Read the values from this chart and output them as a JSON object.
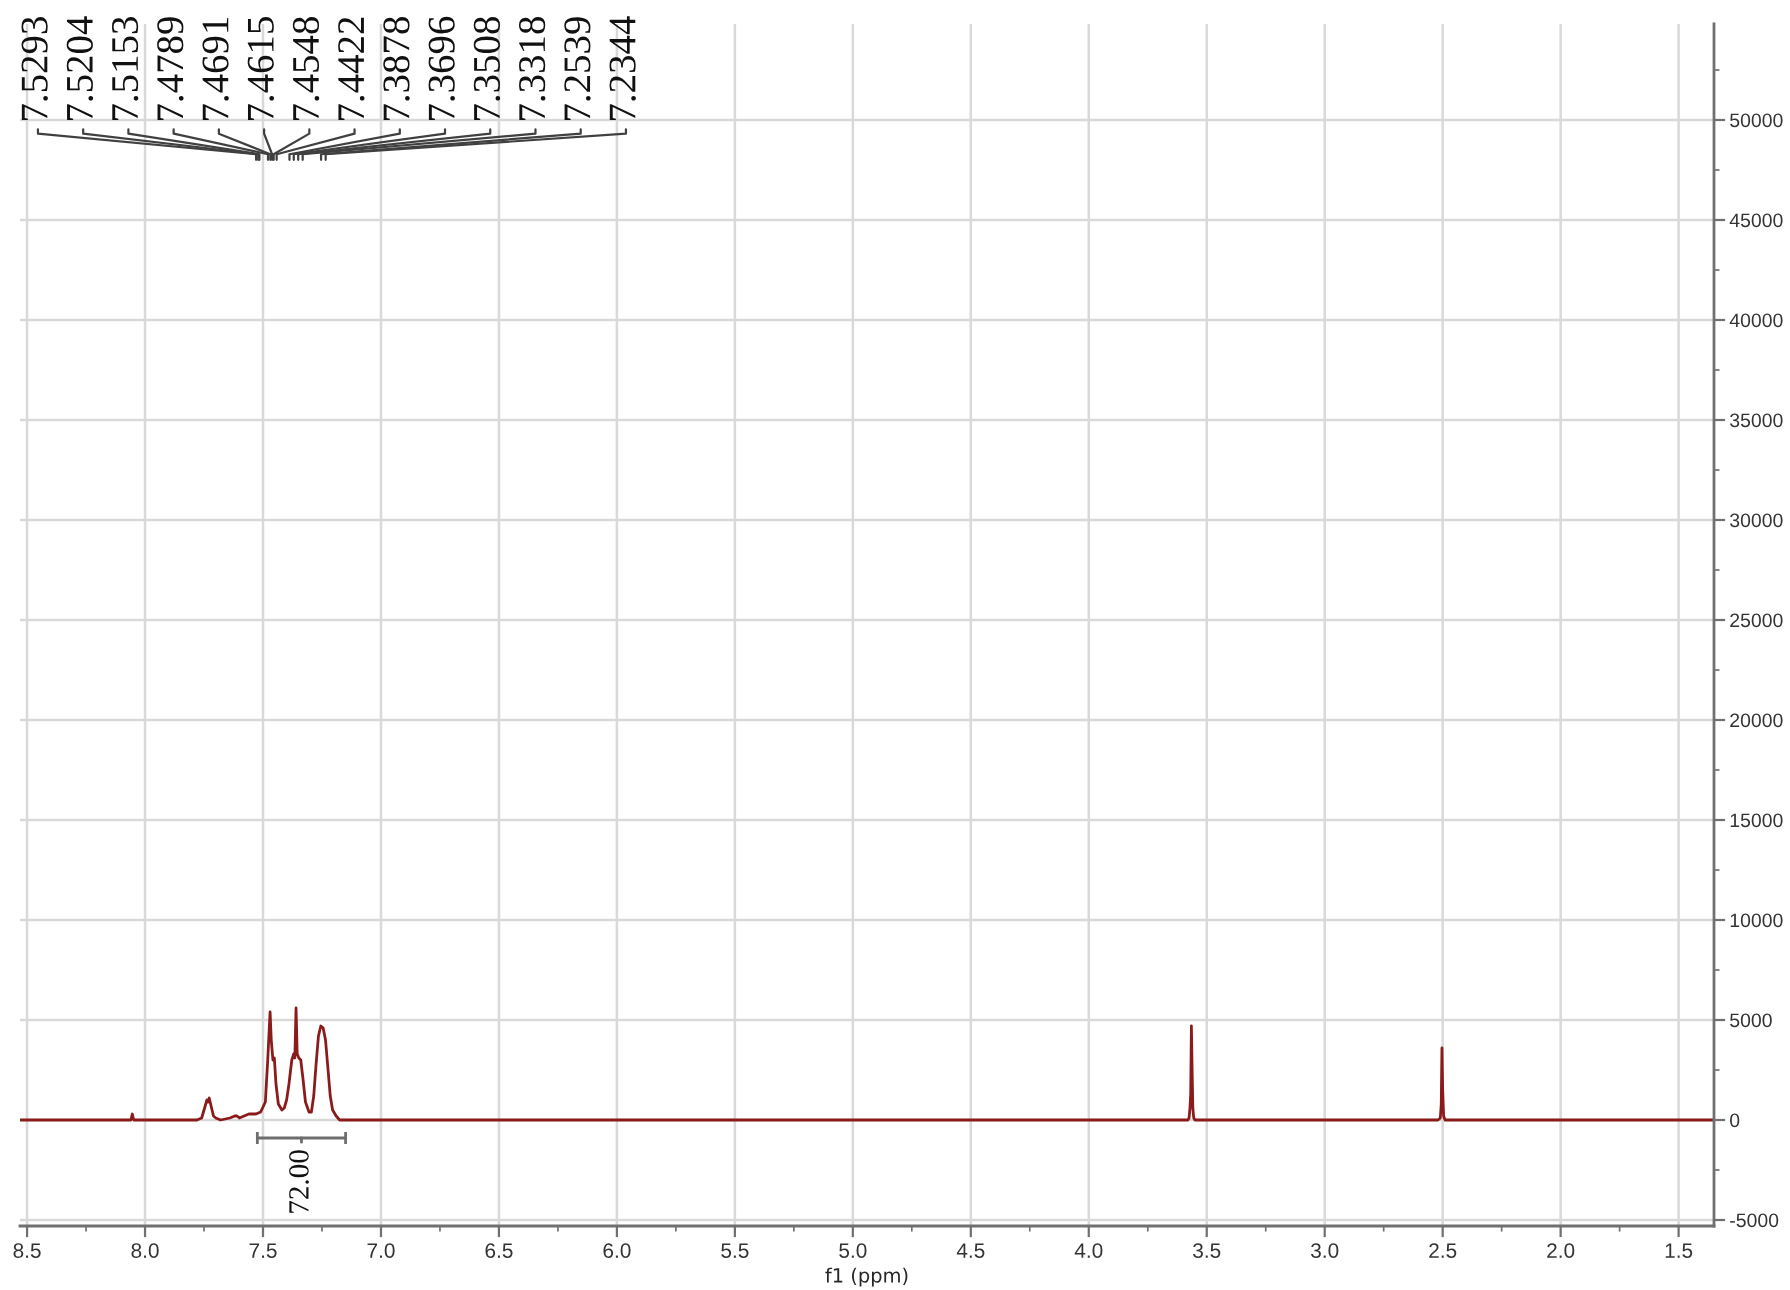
{
  "chart_data": {
    "type": "line",
    "xlabel": "f1 (ppm)",
    "series": [
      {
        "color": "#8b1a1a",
        "x": [
          8.53,
          8.3,
          8.07,
          8.06,
          8.054,
          8.048,
          8.04,
          7.9,
          7.78,
          7.76,
          7.745,
          7.738,
          7.733,
          7.728,
          7.72,
          7.71,
          7.7,
          7.68,
          7.64,
          7.62,
          7.61,
          7.6,
          7.58,
          7.56,
          7.53,
          7.51,
          7.49,
          7.48,
          7.47,
          7.465,
          7.458,
          7.452,
          7.445,
          7.435,
          7.42,
          7.41,
          7.4,
          7.39,
          7.378,
          7.37,
          7.365,
          7.36,
          7.355,
          7.348,
          7.34,
          7.33,
          7.32,
          7.305,
          7.295,
          7.285,
          7.275,
          7.265,
          7.255,
          7.245,
          7.235,
          7.225,
          7.215,
          7.205,
          7.19,
          7.175,
          7.16,
          6.5,
          5.0,
          4.0,
          3.6,
          3.58,
          3.575,
          3.571,
          3.568,
          3.565,
          3.562,
          3.559,
          3.555,
          3.55,
          3.0,
          2.52,
          2.51,
          2.506,
          2.503,
          2.5,
          2.496,
          2.49,
          2.0,
          1.35
        ],
        "values": [
          0,
          0,
          0,
          0,
          300,
          0,
          0,
          0,
          0,
          100,
          700,
          1000,
          900,
          1100,
          700,
          200,
          100,
          0,
          100,
          200,
          200,
          100,
          200,
          300,
          300,
          400,
          900,
          3000,
          5400,
          4000,
          3000,
          3100,
          1800,
          800,
          500,
          600,
          1000,
          1800,
          3000,
          3300,
          3100,
          5600,
          3300,
          3100,
          3000,
          2000,
          900,
          400,
          400,
          1200,
          2800,
          4200,
          4700,
          4600,
          4000,
          2600,
          1200,
          500,
          200,
          0,
          0,
          0,
          0,
          0,
          0,
          0,
          100,
          600,
          1300,
          4700,
          2500,
          600,
          100,
          0,
          0,
          0,
          100,
          800,
          3600,
          1500,
          200,
          0,
          0,
          0
        ]
      },
      {
        "type": "line",
        "color": "#6e6e6e",
        "x": [
          7.524,
          7.15
        ],
        "values": [
          -900,
          -900
        ],
        "errors": [
          300,
          300
        ]
      }
    ],
    "xlim": [
      8.53,
      1.35
    ],
    "xticks": [
      {
        "value": 8.5,
        "label": "8.5"
      },
      {
        "value": 8.25,
        "label": null
      },
      {
        "value": 8,
        "label": "8.0"
      },
      {
        "value": 7.75,
        "label": null
      },
      7.5,
      {
        "value": 7.25,
        "label": null
      },
      {
        "value": 7,
        "label": "7.0"
      },
      {
        "value": 6.75,
        "label": null
      },
      6.5,
      {
        "value": 6.25,
        "label": null
      },
      {
        "value": 6,
        "label": "6.0"
      },
      {
        "value": 5.75,
        "label": null
      },
      5.5,
      {
        "value": 5.25,
        "label": null
      },
      {
        "value": 5,
        "label": "5.0"
      },
      {
        "value": 4.75,
        "label": null
      },
      4.5,
      {
        "value": 4.25,
        "label": null
      },
      {
        "value": 4,
        "label": "4.0"
      },
      {
        "value": 3.75,
        "label": null
      },
      3.5,
      {
        "value": 3.25,
        "label": null
      },
      {
        "value": 3,
        "label": "3.0"
      },
      {
        "value": 2.75,
        "label": null
      },
      2.5,
      {
        "value": 2.25,
        "label": null
      },
      {
        "value": 2,
        "label": "2.0"
      },
      {
        "value": 1.75,
        "label": null
      },
      1.5
    ],
    "ylim": [
      -5300,
      54800
    ],
    "yticks": [
      -5000,
      {
        "value": -2500,
        "label": null
      },
      0,
      {
        "value": 2500,
        "label": null
      },
      5000,
      {
        "value": 7500,
        "label": null
      },
      10000,
      {
        "value": 12500,
        "label": null
      },
      15000,
      {
        "value": 17500,
        "label": null
      },
      20000,
      {
        "value": 22500,
        "label": null
      },
      25000,
      {
        "value": 27500,
        "label": null
      },
      30000,
      {
        "value": 32500,
        "label": null
      },
      35000,
      {
        "value": 37500,
        "label": null
      },
      40000,
      {
        "value": 42500,
        "label": null
      },
      45000,
      {
        "value": 47500,
        "label": null
      },
      50000,
      {
        "value": 52500,
        "label": null
      }
    ],
    "grid": true,
    "annotations": [
      {
        "text": "7.5293",
        "x": 7.5293
      },
      {
        "text": "7.5204",
        "x": 7.5204
      },
      {
        "text": "7.5153",
        "x": 7.5153
      },
      {
        "text": "7.4789",
        "x": 7.4789
      },
      {
        "text": "7.4691",
        "x": 7.4691
      },
      {
        "text": "7.4615",
        "x": 7.4615
      },
      {
        "text": "7.4548",
        "x": 7.4548
      },
      {
        "text": "7.4422",
        "x": 7.4422
      },
      {
        "text": "7.3878",
        "x": 7.3878
      },
      {
        "text": "7.3696",
        "x": 7.3696
      },
      {
        "text": "7.3508",
        "x": 7.3508
      },
      {
        "text": "7.3318",
        "x": 7.3318
      },
      {
        "text": "7.2539",
        "x": 7.2539
      },
      {
        "text": "7.2344",
        "x": 7.2344
      },
      {
        "text": "72.00",
        "x": 7.337,
        "y": -900
      }
    ]
  }
}
